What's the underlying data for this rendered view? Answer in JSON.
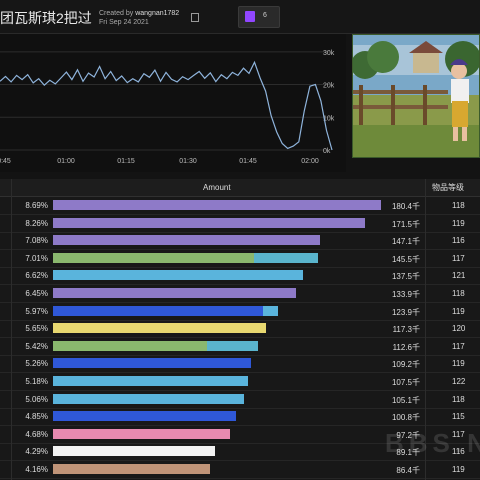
{
  "header": {
    "title": "团瓦斯琪2把过",
    "created_prefix": "Created by",
    "creator": "wangnan1782",
    "date": "Fri Sep 24 2021",
    "twitch_count": "6",
    "twitch_color": "#9146ff"
  },
  "chart_data": {
    "type": "line",
    "x_ticks": [
      "0:45",
      "01:00",
      "01:15",
      "01:30",
      "01:45",
      "02:00"
    ],
    "y_ticks": [
      "30k",
      "20k",
      "10k",
      "0k"
    ],
    "ylim": [
      0,
      33000
    ],
    "values": [
      21000,
      22500,
      20800,
      22800,
      21500,
      23000,
      20500,
      21800,
      19800,
      21300,
      20200,
      22000,
      23800,
      21500,
      24500,
      21000,
      23500,
      22300,
      25500,
      21800,
      24000,
      21200,
      22600,
      20600,
      21800,
      20800,
      23300,
      22200,
      24400,
      21000,
      23700,
      21600,
      20800,
      22400,
      21500,
      22800,
      24000,
      21900,
      23600,
      20900,
      23000,
      21800,
      23700,
      22800,
      25000,
      23400,
      26800,
      22000,
      18000,
      10500,
      5500,
      2000,
      500,
      1200,
      2500,
      12000,
      19500,
      20000,
      15000,
      6000,
      0
    ],
    "line_color": "#8fb4dc"
  },
  "table": {
    "amount_header": "Amount",
    "level_header": "物品等级",
    "rows": [
      {
        "pct": "8.69%",
        "value": "180.4千",
        "level": "118",
        "fraction": 1.0,
        "colors": [
          "#8e7ac8"
        ]
      },
      {
        "pct": "8.26%",
        "value": "171.5千",
        "level": "119",
        "fraction": 0.951,
        "colors": [
          "#8e7ac8"
        ]
      },
      {
        "pct": "7.08%",
        "value": "147.1千",
        "level": "116",
        "fraction": 0.815,
        "colors": [
          "#8e7ac8"
        ]
      },
      {
        "pct": "7.01%",
        "value": "145.5千",
        "level": "117",
        "fraction": 0.807,
        "split": 0.76,
        "colors": [
          "#8ab86e",
          "#5ab4cc"
        ]
      },
      {
        "pct": "6.62%",
        "value": "137.5千",
        "level": "121",
        "fraction": 0.762,
        "colors": [
          "#5ab4dc"
        ]
      },
      {
        "pct": "6.45%",
        "value": "133.9千",
        "level": "118",
        "fraction": 0.742,
        "colors": [
          "#8e7ac8"
        ]
      },
      {
        "pct": "5.97%",
        "value": "123.9千",
        "level": "119",
        "fraction": 0.687,
        "split": 0.93,
        "colors": [
          "#2f58d8",
          "#5ab4dc"
        ]
      },
      {
        "pct": "5.65%",
        "value": "117.3千",
        "level": "120",
        "fraction": 0.65,
        "colors": [
          "#e8d870"
        ]
      },
      {
        "pct": "5.42%",
        "value": "112.6千",
        "level": "117",
        "fraction": 0.624,
        "split": 0.75,
        "colors": [
          "#8ab86e",
          "#5ab4cc"
        ]
      },
      {
        "pct": "5.26%",
        "value": "109.2千",
        "level": "119",
        "fraction": 0.605,
        "colors": [
          "#2f58d8"
        ]
      },
      {
        "pct": "5.18%",
        "value": "107.5千",
        "level": "122",
        "fraction": 0.596,
        "colors": [
          "#5ab4dc"
        ]
      },
      {
        "pct": "5.06%",
        "value": "105.1千",
        "level": "118",
        "fraction": 0.583,
        "colors": [
          "#5ab4dc"
        ]
      },
      {
        "pct": "4.85%",
        "value": "100.8千",
        "level": "115",
        "fraction": 0.559,
        "colors": [
          "#2f58d8"
        ]
      },
      {
        "pct": "4.68%",
        "value": "97.2千",
        "level": "117",
        "fraction": 0.539,
        "colors": [
          "#e88ab0"
        ]
      },
      {
        "pct": "4.29%",
        "value": "89.1千",
        "level": "116",
        "fraction": 0.494,
        "colors": [
          "#f2f2f2"
        ]
      },
      {
        "pct": "4.16%",
        "value": "86.4千",
        "level": "119",
        "fraction": 0.479,
        "colors": [
          "#c09478"
        ]
      }
    ]
  },
  "watermark": "BBS.N"
}
